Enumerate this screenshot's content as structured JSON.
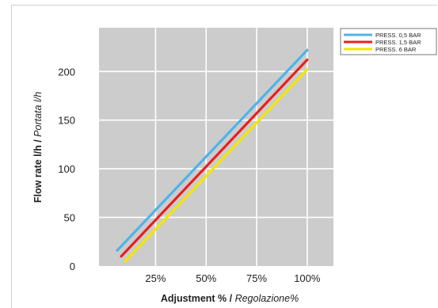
{
  "chart_data": {
    "type": "line",
    "title": "",
    "xlabel": "Adjustment % / ",
    "xlabel_italic": "Regolazione%",
    "ylabel": "Flow rate l/h / ",
    "ylabel_italic": "Portata l/h",
    "x_ticks": [
      "25%",
      "50%",
      "75%",
      "100%"
    ],
    "y_ticks": [
      "0",
      "50",
      "100",
      "150",
      "200"
    ],
    "xlim": [
      -3,
      113
    ],
    "ylim": [
      0,
      245
    ],
    "grid": true,
    "legend_position": "top-right",
    "series": [
      {
        "name": "PRESS. 0,5 BAR",
        "color": "#4fb3e8",
        "x": [
          6,
          100
        ],
        "y": [
          16,
          222
        ]
      },
      {
        "name": "PRESS. 1,5 BAR",
        "color": "#e82020",
        "x": [
          8,
          100
        ],
        "y": [
          10,
          212
        ]
      },
      {
        "name": "PRESS.     6 BAR",
        "color": "#f2e600",
        "x": [
          10,
          100
        ],
        "y": [
          5,
          202
        ]
      }
    ]
  }
}
